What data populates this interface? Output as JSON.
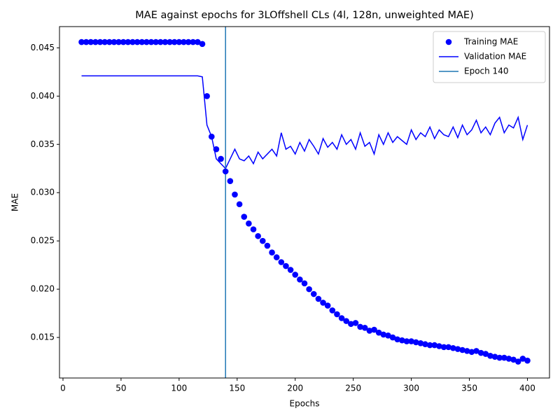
{
  "chart_data": {
    "type": "line",
    "title": "MAE against epochs for 3LOffshell CLs (4l, 128n, unweighted MAE)",
    "xlabel": "Epochs",
    "ylabel": "MAE",
    "x": [
      16,
      20,
      24,
      28,
      32,
      36,
      40,
      44,
      48,
      52,
      56,
      60,
      64,
      68,
      72,
      76,
      80,
      84,
      88,
      92,
      96,
      100,
      104,
      108,
      112,
      116,
      120,
      124,
      128,
      132,
      136,
      140,
      144,
      148,
      152,
      156,
      160,
      164,
      168,
      172,
      176,
      180,
      184,
      188,
      192,
      196,
      200,
      204,
      208,
      212,
      216,
      220,
      224,
      228,
      232,
      236,
      240,
      244,
      248,
      252,
      256,
      260,
      264,
      268,
      272,
      276,
      280,
      284,
      288,
      292,
      296,
      300,
      304,
      308,
      312,
      316,
      320,
      324,
      328,
      332,
      336,
      340,
      344,
      348,
      352,
      356,
      360,
      364,
      368,
      372,
      376,
      380,
      384,
      388,
      392,
      396,
      400
    ],
    "series": [
      {
        "name": "Training MAE",
        "style": "marker",
        "color": "#0000ff",
        "values": [
          0.0456,
          0.0456,
          0.0456,
          0.0456,
          0.0456,
          0.0456,
          0.0456,
          0.0456,
          0.0456,
          0.0456,
          0.0456,
          0.0456,
          0.0456,
          0.0456,
          0.0456,
          0.0456,
          0.0456,
          0.0456,
          0.0456,
          0.0456,
          0.0456,
          0.0456,
          0.0456,
          0.0456,
          0.0456,
          0.0456,
          0.0454,
          0.04,
          0.0358,
          0.0345,
          0.0335,
          0.0322,
          0.0312,
          0.0298,
          0.0288,
          0.0275,
          0.0268,
          0.0262,
          0.0255,
          0.025,
          0.0245,
          0.0238,
          0.0233,
          0.0228,
          0.0224,
          0.022,
          0.0215,
          0.021,
          0.0206,
          0.02,
          0.0195,
          0.019,
          0.0186,
          0.0183,
          0.0178,
          0.0174,
          0.017,
          0.0167,
          0.0164,
          0.0165,
          0.0161,
          0.016,
          0.0157,
          0.0158,
          0.0155,
          0.0153,
          0.0152,
          0.015,
          0.0148,
          0.0147,
          0.0146,
          0.0146,
          0.0145,
          0.0144,
          0.0143,
          0.0142,
          0.0142,
          0.0141,
          0.014,
          0.014,
          0.0139,
          0.0138,
          0.0137,
          0.0136,
          0.0135,
          0.0136,
          0.0134,
          0.0133,
          0.0131,
          0.013,
          0.0129,
          0.0129,
          0.0128,
          0.0127,
          0.0125,
          0.0128,
          0.0126
        ]
      },
      {
        "name": "Validation MAE",
        "style": "line",
        "color": "#0000ff",
        "values": [
          0.0421,
          0.0421,
          0.0421,
          0.0421,
          0.0421,
          0.0421,
          0.0421,
          0.0421,
          0.0421,
          0.0421,
          0.0421,
          0.0421,
          0.0421,
          0.0421,
          0.0421,
          0.0421,
          0.0421,
          0.0421,
          0.0421,
          0.0421,
          0.0421,
          0.0421,
          0.0421,
          0.0421,
          0.0421,
          0.0421,
          0.042,
          0.037,
          0.0358,
          0.0335,
          0.033,
          0.0325,
          0.0335,
          0.0345,
          0.0335,
          0.0333,
          0.0338,
          0.033,
          0.0342,
          0.0335,
          0.034,
          0.0345,
          0.0338,
          0.0362,
          0.0345,
          0.0348,
          0.034,
          0.0352,
          0.0343,
          0.0355,
          0.0348,
          0.034,
          0.0356,
          0.0347,
          0.0352,
          0.0345,
          0.036,
          0.035,
          0.0355,
          0.0345,
          0.0362,
          0.0348,
          0.0352,
          0.034,
          0.036,
          0.035,
          0.0362,
          0.0352,
          0.0358,
          0.0354,
          0.035,
          0.0365,
          0.0355,
          0.0362,
          0.0358,
          0.0368,
          0.0356,
          0.0365,
          0.036,
          0.0358,
          0.0368,
          0.0357,
          0.037,
          0.036,
          0.0365,
          0.0375,
          0.0362,
          0.0368,
          0.036,
          0.0372,
          0.0378,
          0.0362,
          0.037,
          0.0367,
          0.0378,
          0.0355,
          0.037
        ]
      }
    ],
    "vlines": [
      {
        "name": "Epoch 140",
        "x": 140,
        "color": "#1f77b4"
      }
    ],
    "xlim": [
      -3,
      419
    ],
    "ylim": [
      0.0108,
      0.0472
    ],
    "xticks": [
      0,
      50,
      100,
      150,
      200,
      250,
      300,
      350,
      400
    ],
    "yticks": [
      0.015,
      {
        "value": 0.02,
        "label": "0.020"
      },
      0.025,
      {
        "value": 0.03,
        "label": "0.030"
      },
      0.035,
      {
        "value": 0.04,
        "label": "0.040"
      },
      0.045
    ],
    "legend": "upper right",
    "grid": false
  }
}
